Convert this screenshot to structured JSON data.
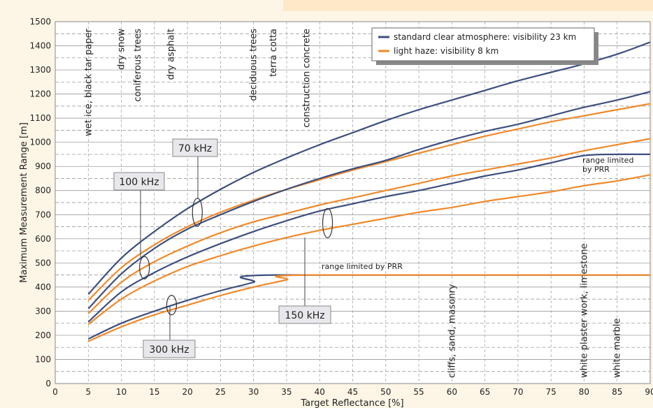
{
  "chart_data": {
    "type": "line",
    "title": "",
    "xlabel": "Target Reflectance [%]",
    "ylabel": "Maximum Measurement Range [m]",
    "xlim": [
      0,
      90
    ],
    "ylim": [
      0,
      1500
    ],
    "x_ticks": [
      "0",
      "5",
      "10",
      "15",
      "20",
      "25",
      "30",
      "35",
      "40",
      "45",
      "50",
      "55",
      "60",
      "65",
      "70",
      "75",
      "80",
      "85",
      "90"
    ],
    "y_ticks": [
      "0",
      "100",
      "200",
      "300",
      "400",
      "500",
      "600",
      "700",
      "800",
      "900",
      "1000",
      "1100",
      "1200",
      "1300",
      "1400",
      "1500"
    ],
    "grid": true,
    "legend_position": "top-right",
    "legend": [
      {
        "label": "standard clear atmosphere: visibility 23 km",
        "color": "#3d4f7d"
      },
      {
        "label": "light haze: visibility 8 km",
        "color": "#f0892a"
      }
    ],
    "colors": {
      "clear": "#3d4f7d",
      "haze": "#f0892a"
    },
    "series": [
      {
        "frequency": "70 kHz",
        "atmosphere": "clear",
        "x": [
          5,
          10,
          15,
          20,
          25,
          30,
          35,
          40,
          45,
          50,
          55,
          60,
          65,
          70,
          75,
          80,
          85,
          90
        ],
        "y": [
          370,
          520,
          630,
          725,
          805,
          875,
          935,
          990,
          1040,
          1090,
          1135,
          1175,
          1215,
          1255,
          1290,
          1325,
          1365,
          1415
        ]
      },
      {
        "frequency": "70 kHz",
        "atmosphere": "haze",
        "x": [
          5,
          10,
          15,
          20,
          25,
          30,
          35,
          40,
          45,
          50,
          55,
          60,
          65,
          70,
          75,
          80,
          85,
          90
        ],
        "y": [
          345,
          480,
          575,
          650,
          710,
          760,
          805,
          845,
          885,
          920,
          955,
          990,
          1025,
          1055,
          1085,
          1110,
          1135,
          1160
        ]
      },
      {
        "frequency": "100 kHz",
        "atmosphere": "clear",
        "x": [
          5,
          10,
          15,
          20,
          25,
          30,
          35,
          40,
          45,
          50,
          55,
          60,
          65,
          70,
          75,
          80,
          85,
          90
        ],
        "y": [
          310,
          455,
          560,
          640,
          700,
          755,
          805,
          850,
          890,
          925,
          970,
          1010,
          1045,
          1075,
          1110,
          1145,
          1175,
          1210
        ]
      },
      {
        "frequency": "100 kHz",
        "atmosphere": "haze",
        "x": [
          5,
          10,
          15,
          20,
          25,
          30,
          35,
          40,
          45,
          50,
          55,
          60,
          65,
          70,
          75,
          80,
          85,
          90
        ],
        "y": [
          290,
          420,
          505,
          570,
          625,
          670,
          705,
          740,
          770,
          800,
          830,
          860,
          885,
          910,
          935,
          965,
          990,
          1015
        ]
      },
      {
        "frequency": "150 kHz",
        "atmosphere": "clear",
        "x": [
          5,
          10,
          15,
          20,
          25,
          30,
          35,
          40,
          45,
          50,
          55,
          60,
          65,
          70,
          75,
          80,
          85,
          90
        ],
        "y": [
          255,
          380,
          460,
          525,
          580,
          630,
          675,
          715,
          745,
          775,
          800,
          830,
          860,
          885,
          915,
          945,
          950,
          950
        ]
      },
      {
        "frequency": "150 kHz",
        "atmosphere": "haze",
        "x": [
          5,
          10,
          15,
          20,
          25,
          30,
          35,
          40,
          45,
          50,
          55,
          60,
          65,
          70,
          75,
          80,
          85,
          90
        ],
        "y": [
          245,
          350,
          425,
          485,
          530,
          570,
          605,
          635,
          660,
          685,
          710,
          730,
          755,
          775,
          795,
          820,
          840,
          865
        ]
      },
      {
        "frequency": "300 kHz",
        "atmosphere": "clear",
        "x": [
          5,
          10,
          15,
          20,
          25,
          30,
          33,
          90
        ],
        "y": [
          185,
          250,
          300,
          345,
          385,
          420,
          450,
          450
        ]
      },
      {
        "frequency": "300 kHz",
        "atmosphere": "haze",
        "x": [
          5,
          10,
          15,
          20,
          25,
          30,
          35,
          38,
          90
        ],
        "y": [
          175,
          235,
          285,
          325,
          365,
          400,
          430,
          450,
          450
        ]
      }
    ],
    "materials": [
      {
        "label": "wet ice, black tar paper",
        "x": 5
      },
      {
        "label": "dry snow",
        "x": 10
      },
      {
        "label": "coniferous trees",
        "x": 12.5
      },
      {
        "label": "dry asphalt",
        "x": 17.5
      },
      {
        "label": "deciduous trees",
        "x": 30
      },
      {
        "label": "terra cotta",
        "x": 33
      },
      {
        "label": "construction concrete",
        "x": 38
      },
      {
        "label": "cliffs, sand, masonry",
        "x": 60
      },
      {
        "label": "white plaster work, limestone",
        "x": 80
      },
      {
        "label": "white marble",
        "x": 85
      }
    ],
    "annotations": {
      "prr_low": "range limited by PRR",
      "prr_high_line1": "range limited",
      "prr_high_line2": "by PRR",
      "freq_70": "70 kHz",
      "freq_100": "100 kHz",
      "freq_150": "150 kHz",
      "freq_300": "300 kHz"
    }
  }
}
